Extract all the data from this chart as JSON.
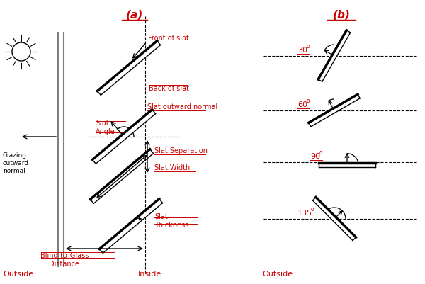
{
  "bg_color": "#ffffff",
  "red_color": "#cc0000",
  "black_color": "#000000",
  "title_a": "(a)",
  "title_b": "(b)",
  "outside_label": "Outside",
  "inside_label": "Inside",
  "glazing_label": "Glazing\noutward\nnormal",
  "front_slat_label": "Front of slat",
  "back_slat_label": "Back of slat",
  "slat_normal_label": "Slat outward normal",
  "slat_angle_label": "Slat\nAngle",
  "slat_sep_label": "Slat Separation",
  "slat_width_label": "Slat Width",
  "slat_thickness_label": "Slat\nThickness",
  "blind_glass_label": "Blind-to-Glass\nDistance",
  "angles": [
    30,
    60,
    90,
    135
  ],
  "angle_labels": [
    "30",
    "60",
    "90",
    "135"
  ]
}
